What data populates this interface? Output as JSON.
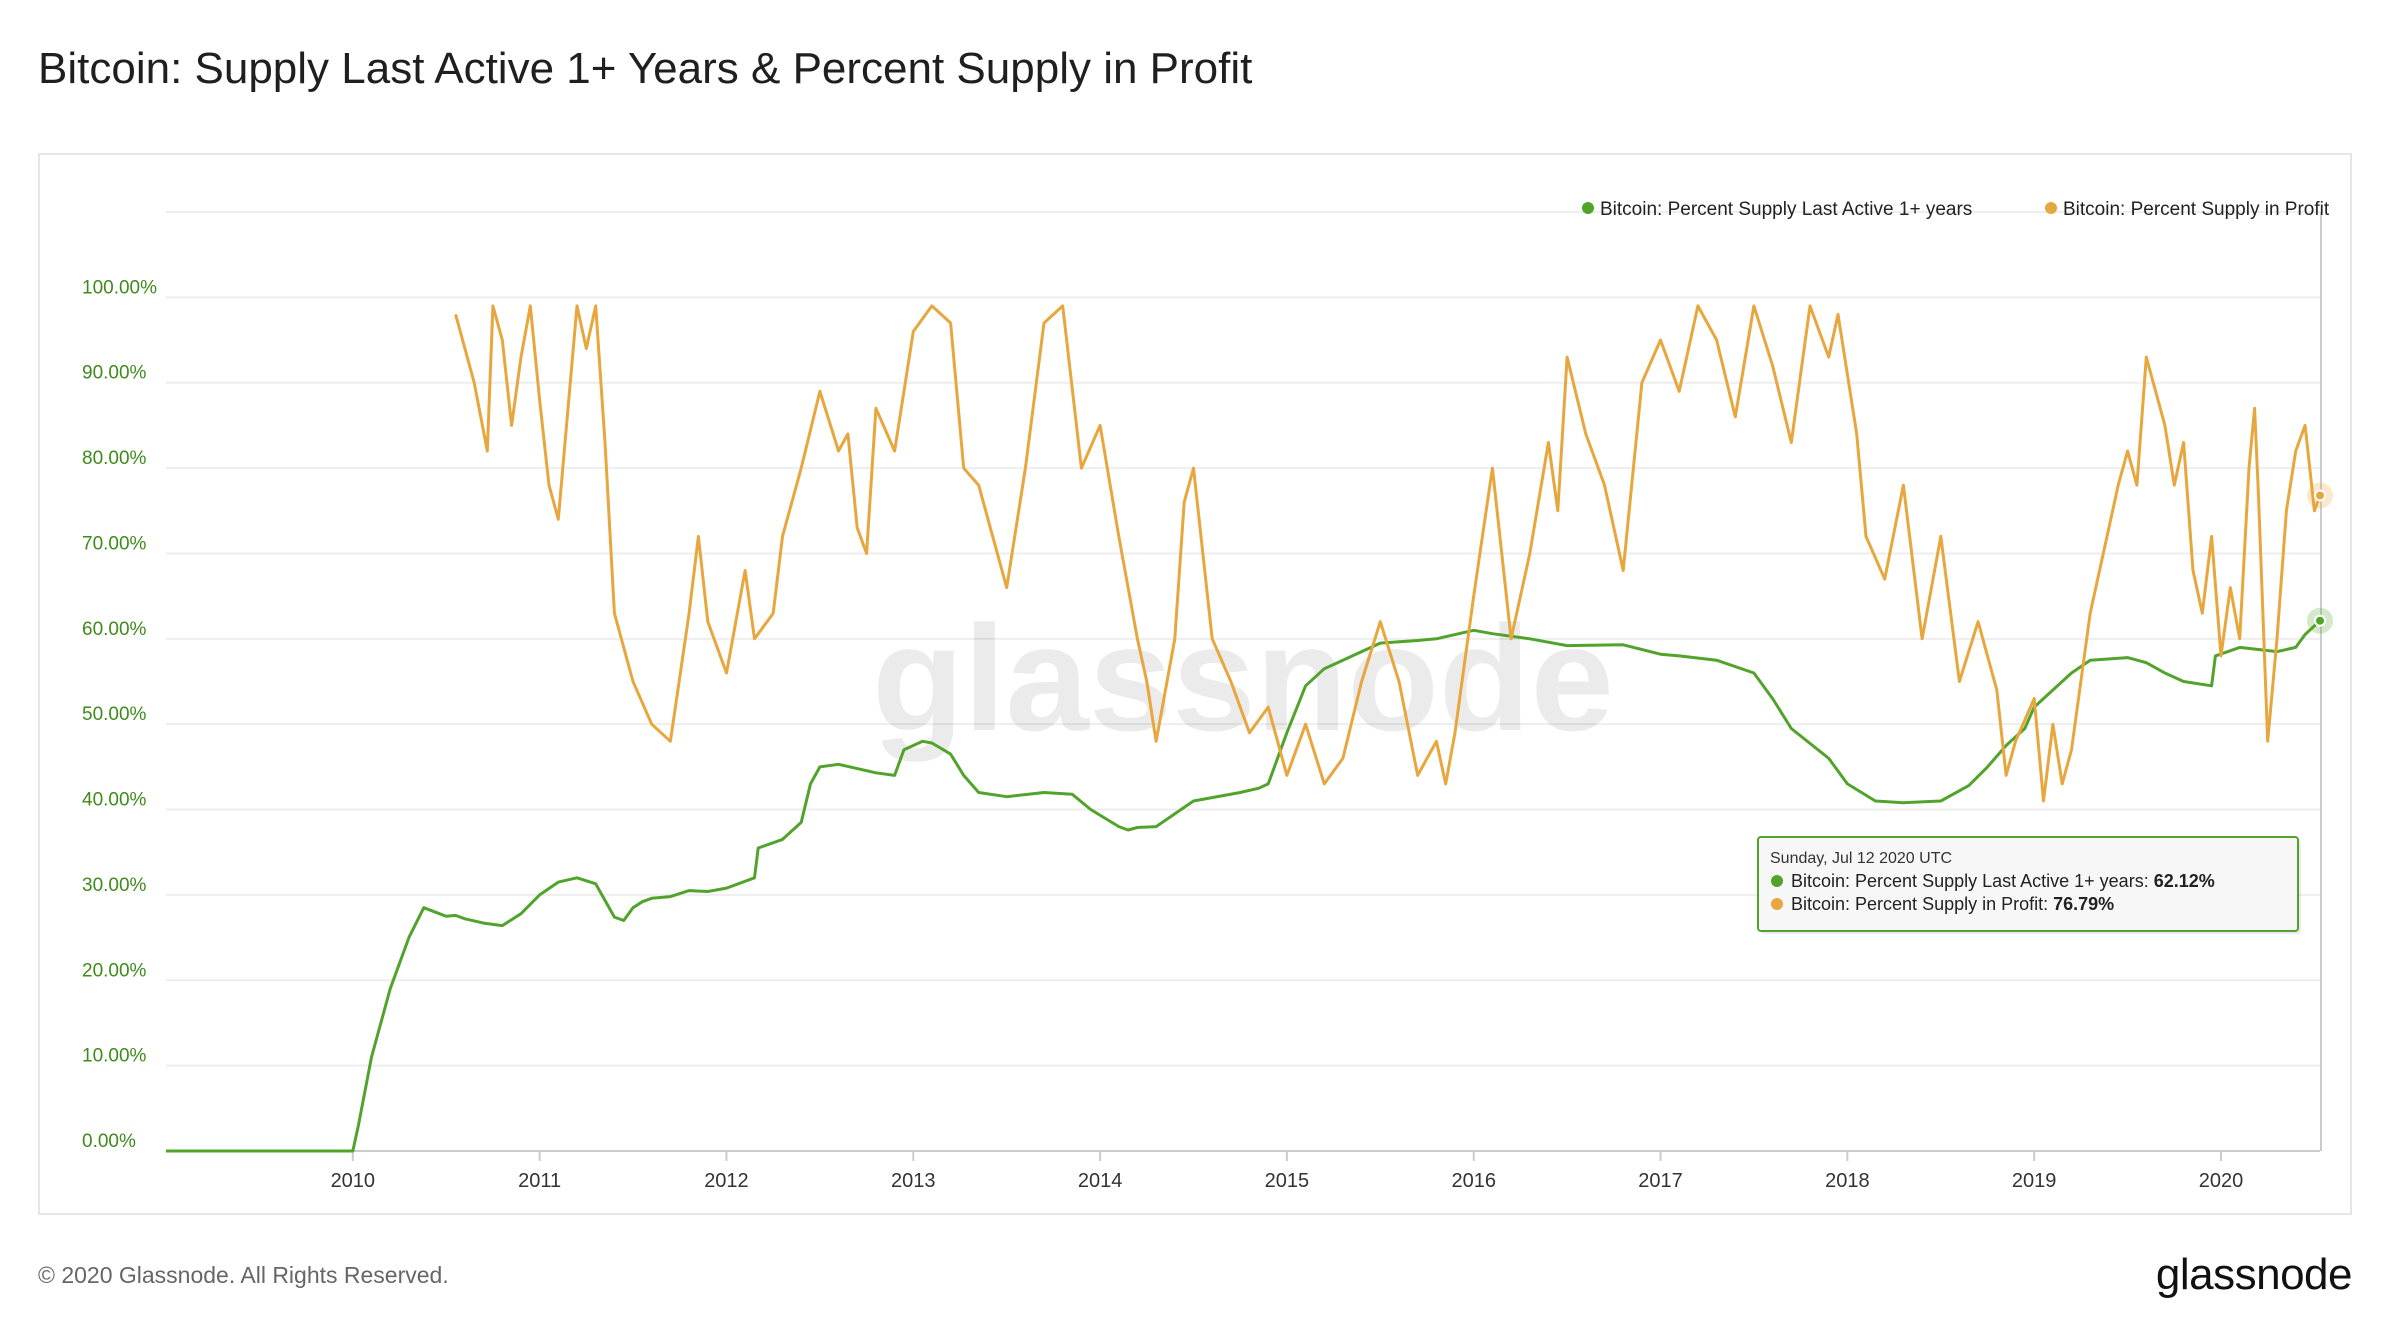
{
  "page": {
    "title": "Bitcoin: Supply Last Active 1+ Years & Percent Supply in Profit",
    "copyright": "© 2020 Glassnode. All Rights Reserved.",
    "brand": "glassnode",
    "watermark": "glassnode"
  },
  "colors": {
    "green": "#52a32c",
    "orange": "#e8a63e",
    "axis_text": "#3f8a1c",
    "grid": "#eeeeee"
  },
  "tooltip": {
    "date": "Sunday, Jul 12 2020 UTC",
    "rows": [
      {
        "label": "Bitcoin: Percent Supply Last Active 1+ years: ",
        "value": "62.12%"
      },
      {
        "label": "Bitcoin: Percent Supply in Profit: ",
        "value": "76.79%"
      }
    ]
  },
  "chart_data": {
    "type": "line",
    "title": "Bitcoin: Supply Last Active 1+ Years & Percent Supply in Profit",
    "xlabel": "",
    "ylabel": "",
    "xlim": [
      2009.0,
      2020.53
    ],
    "ylim": [
      0,
      110
    ],
    "y_ticks": [
      0,
      10,
      20,
      30,
      40,
      50,
      60,
      70,
      80,
      90,
      100
    ],
    "y_tick_labels": [
      "0.00%",
      "10.00%",
      "20.00%",
      "30.00%",
      "40.00%",
      "50.00%",
      "60.00%",
      "70.00%",
      "80.00%",
      "90.00%",
      "100.00%"
    ],
    "x_ticks": [
      2010,
      2011,
      2012,
      2013,
      2014,
      2015,
      2016,
      2017,
      2018,
      2019,
      2020
    ],
    "x_tick_labels": [
      "2010",
      "2011",
      "2012",
      "2013",
      "2014",
      "2015",
      "2016",
      "2017",
      "2018",
      "2019",
      "2020"
    ],
    "legend_position": "top-right",
    "series": [
      {
        "name": "Bitcoin: Percent Supply Last Active 1+ years",
        "color": "#52a32c",
        "x": [
          2009.0,
          2010.0,
          2010.03,
          2010.1,
          2010.2,
          2010.3,
          2010.38,
          2010.5,
          2010.55,
          2010.6,
          2010.7,
          2010.8,
          2010.9,
          2011.0,
          2011.1,
          2011.2,
          2011.3,
          2011.4,
          2011.45,
          2011.5,
          2011.55,
          2011.6,
          2011.7,
          2011.8,
          2011.9,
          2012.0,
          2012.15,
          2012.17,
          2012.3,
          2012.4,
          2012.45,
          2012.5,
          2012.6,
          2012.7,
          2012.8,
          2012.9,
          2012.95,
          2013.05,
          2013.1,
          2013.2,
          2013.27,
          2013.35,
          2013.5,
          2013.7,
          2013.85,
          2013.95,
          2014.1,
          2014.15,
          2014.2,
          2014.3,
          2014.5,
          2014.75,
          2014.85,
          2014.9,
          2015.0,
          2015.1,
          2015.2,
          2015.3,
          2015.4,
          2015.5,
          2015.7,
          2015.8,
          2016.0,
          2016.1,
          2016.3,
          2016.5,
          2016.8,
          2017.0,
          2017.1,
          2017.3,
          2017.5,
          2017.6,
          2017.7,
          2017.9,
          2018.0,
          2018.15,
          2018.3,
          2018.5,
          2018.65,
          2018.75,
          2018.85,
          2018.95,
          2019.0,
          2019.1,
          2019.2,
          2019.3,
          2019.5,
          2019.6,
          2019.7,
          2019.8,
          2019.95,
          2019.97,
          2020.1,
          2020.3,
          2020.4,
          2020.45,
          2020.53
        ],
        "values": [
          0,
          0,
          3,
          11,
          19,
          25,
          28.5,
          27.5,
          27.6,
          27.2,
          26.7,
          26.4,
          27.8,
          30.0,
          31.5,
          32.0,
          31.3,
          27.4,
          27.0,
          28.5,
          29.2,
          29.6,
          29.8,
          30.5,
          30.4,
          30.8,
          32.0,
          35.5,
          36.5,
          38.5,
          43.0,
          45.0,
          45.3,
          44.8,
          44.3,
          44.0,
          47.0,
          48.0,
          47.8,
          46.5,
          44.0,
          42.0,
          41.5,
          42.0,
          41.8,
          40.0,
          38.0,
          37.6,
          37.9,
          38.0,
          41.0,
          42.0,
          42.5,
          43.0,
          49.0,
          54.5,
          56.5,
          57.5,
          58.5,
          59.5,
          59.8,
          60.0,
          61.0,
          60.6,
          60.0,
          59.2,
          59.3,
          58.2,
          58.0,
          57.5,
          56.0,
          53.0,
          49.5,
          46.0,
          43.0,
          41.0,
          40.8,
          41.0,
          42.8,
          45.0,
          47.5,
          49.5,
          52.0,
          54.0,
          56.0,
          57.5,
          57.8,
          57.2,
          56.0,
          55.0,
          54.5,
          58.0,
          59.0,
          58.5,
          59.0,
          60.5,
          62.12
        ]
      },
      {
        "name": "Bitcoin: Percent Supply in Profit",
        "color": "#e8a63e",
        "x": [
          2010.55,
          2010.65,
          2010.72,
          2010.75,
          2010.8,
          2010.85,
          2010.9,
          2010.95,
          2011.0,
          2011.05,
          2011.1,
          2011.2,
          2011.25,
          2011.3,
          2011.35,
          2011.4,
          2011.5,
          2011.6,
          2011.7,
          2011.8,
          2011.85,
          2011.9,
          2012.0,
          2012.1,
          2012.15,
          2012.25,
          2012.3,
          2012.4,
          2012.5,
          2012.6,
          2012.65,
          2012.7,
          2012.75,
          2012.8,
          2012.9,
          2013.0,
          2013.1,
          2013.2,
          2013.27,
          2013.35,
          2013.4,
          2013.5,
          2013.6,
          2013.7,
          2013.8,
          2013.9,
          2014.0,
          2014.1,
          2014.2,
          2014.25,
          2014.3,
          2014.4,
          2014.45,
          2014.5,
          2014.6,
          2014.7,
          2014.8,
          2014.9,
          2015.0,
          2015.1,
          2015.2,
          2015.3,
          2015.4,
          2015.5,
          2015.6,
          2015.7,
          2015.8,
          2015.85,
          2015.9,
          2016.0,
          2016.1,
          2016.2,
          2016.3,
          2016.4,
          2016.45,
          2016.5,
          2016.6,
          2016.7,
          2016.8,
          2016.9,
          2017.0,
          2017.1,
          2017.2,
          2017.3,
          2017.4,
          2017.5,
          2017.6,
          2017.7,
          2017.8,
          2017.9,
          2017.95,
          2018.05,
          2018.1,
          2018.2,
          2018.3,
          2018.4,
          2018.5,
          2018.6,
          2018.7,
          2018.8,
          2018.85,
          2018.9,
          2019.0,
          2019.05,
          2019.1,
          2019.15,
          2019.2,
          2019.3,
          2019.4,
          2019.45,
          2019.5,
          2019.55,
          2019.6,
          2019.7,
          2019.75,
          2019.8,
          2019.85,
          2019.9,
          2019.95,
          2020.0,
          2020.05,
          2020.1,
          2020.15,
          2020.18,
          2020.2,
          2020.25,
          2020.3,
          2020.35,
          2020.4,
          2020.45,
          2020.5,
          2020.53
        ],
        "values": [
          98,
          90,
          82,
          99,
          95,
          85,
          93,
          99,
          88,
          78,
          74,
          99,
          94,
          99,
          83,
          63,
          55,
          50,
          48,
          63,
          72,
          62,
          56,
          68,
          60,
          63,
          72,
          80,
          89,
          82,
          84,
          73,
          70,
          87,
          82,
          96,
          99,
          97,
          80,
          78,
          74,
          66,
          80,
          97,
          99,
          80,
          85,
          72,
          60,
          55,
          48,
          60,
          76,
          80,
          60,
          55,
          49,
          52,
          44,
          50,
          43,
          46,
          55,
          62,
          55,
          44,
          48,
          43,
          49,
          65,
          80,
          60,
          70,
          83,
          75,
          93,
          84,
          78,
          68,
          90,
          95,
          89,
          99,
          95,
          86,
          99,
          92,
          83,
          99,
          93,
          98,
          84,
          72,
          67,
          78,
          60,
          72,
          55,
          62,
          54,
          44,
          48,
          53,
          41,
          50,
          43,
          47,
          63,
          73,
          78,
          82,
          78,
          93,
          85,
          78,
          83,
          68,
          63,
          72,
          58,
          66,
          60,
          80,
          87,
          77,
          48,
          60,
          75,
          82,
          85,
          75,
          76.79
        ]
      }
    ]
  }
}
